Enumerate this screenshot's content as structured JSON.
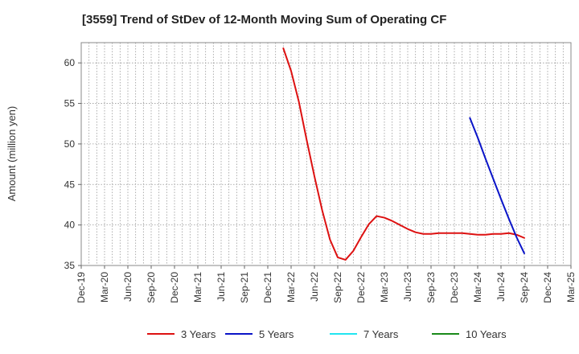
{
  "chart_data": {
    "type": "line",
    "title": "[3559]  Trend of StDev of 12-Month Moving Sum of Operating CF",
    "xlabel": "",
    "ylabel": "Amount (million yen)",
    "ylim": [
      35,
      62.5
    ],
    "yticks": [
      35,
      40,
      45,
      50,
      55,
      60
    ],
    "x_range": [
      "2019-12",
      "2025-03"
    ],
    "xticks": [
      "Dec-19",
      "Mar-20",
      "Jun-20",
      "Sep-20",
      "Dec-20",
      "Mar-21",
      "Jun-21",
      "Sep-21",
      "Dec-21",
      "Mar-22",
      "Jun-22",
      "Sep-22",
      "Dec-22",
      "Mar-23",
      "Jun-23",
      "Sep-23",
      "Dec-23",
      "Mar-24",
      "Jun-24",
      "Sep-24",
      "Dec-24",
      "Mar-25"
    ],
    "grid": true,
    "legend_position": "bottom",
    "series": [
      {
        "name": "3 Years",
        "color": "#dd1111",
        "points": [
          [
            "2022-02",
            61.8
          ],
          [
            "2022-03",
            59.0
          ],
          [
            "2022-04",
            55.2
          ],
          [
            "2022-05",
            50.5
          ],
          [
            "2022-06",
            46.0
          ],
          [
            "2022-07",
            41.8
          ],
          [
            "2022-08",
            38.2
          ],
          [
            "2022-09",
            36.0
          ],
          [
            "2022-10",
            35.7
          ],
          [
            "2022-11",
            36.8
          ],
          [
            "2022-12",
            38.5
          ],
          [
            "2023-01",
            40.1
          ],
          [
            "2023-02",
            41.1
          ],
          [
            "2023-03",
            40.9
          ],
          [
            "2023-04",
            40.5
          ],
          [
            "2023-05",
            40.0
          ],
          [
            "2023-06",
            39.5
          ],
          [
            "2023-07",
            39.1
          ],
          [
            "2023-08",
            38.9
          ],
          [
            "2023-09",
            38.9
          ],
          [
            "2023-10",
            39.0
          ],
          [
            "2023-11",
            39.0
          ],
          [
            "2023-12",
            39.0
          ],
          [
            "2024-01",
            39.0
          ],
          [
            "2024-02",
            38.9
          ],
          [
            "2024-03",
            38.8
          ],
          [
            "2024-04",
            38.8
          ],
          [
            "2024-05",
            38.9
          ],
          [
            "2024-06",
            38.9
          ],
          [
            "2024-07",
            39.0
          ],
          [
            "2024-08",
            38.8
          ],
          [
            "2024-09",
            38.4
          ]
        ]
      },
      {
        "name": "5 Years",
        "color": "#0a14c8",
        "points": [
          [
            "2024-02",
            53.2
          ],
          [
            "2024-03",
            50.8
          ],
          [
            "2024-04",
            48.2
          ],
          [
            "2024-05",
            45.7
          ],
          [
            "2024-06",
            43.2
          ],
          [
            "2024-07",
            40.8
          ],
          [
            "2024-08",
            38.5
          ],
          [
            "2024-09",
            36.5
          ]
        ]
      },
      {
        "name": "7 Years",
        "color": "#22e5f0",
        "points": []
      },
      {
        "name": "10 Years",
        "color": "#1a8a1a",
        "points": []
      }
    ]
  }
}
